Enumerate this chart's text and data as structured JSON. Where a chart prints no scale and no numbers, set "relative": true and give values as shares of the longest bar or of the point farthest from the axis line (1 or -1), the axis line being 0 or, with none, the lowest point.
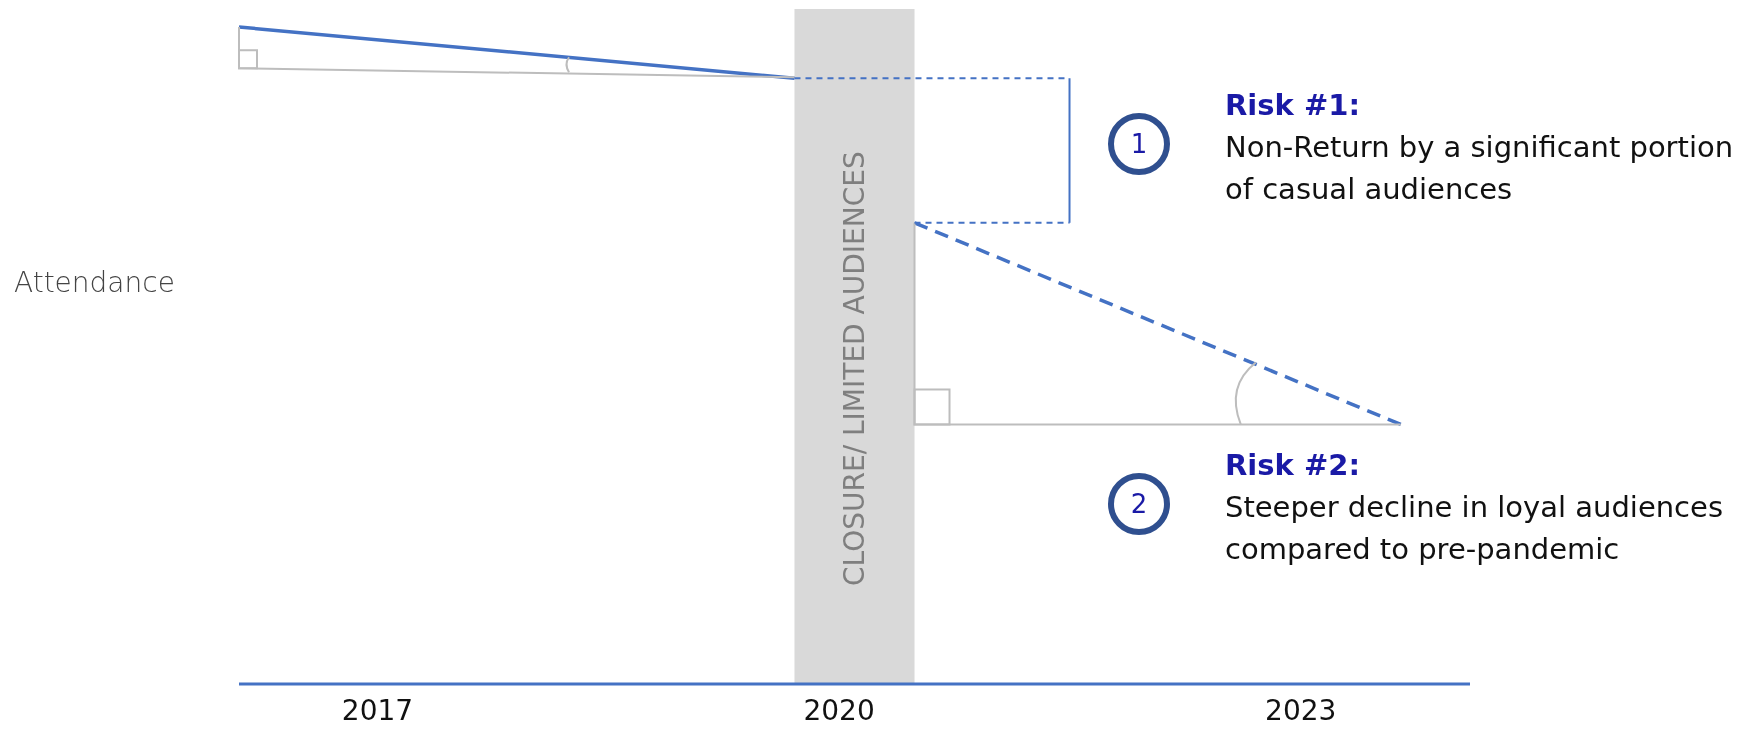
{
  "chart_data": {
    "type": "line",
    "relative": true,
    "ylabel": "Attendance",
    "xlim": [
      2016.1,
      2024.1
    ],
    "xticks": [
      2017,
      2020,
      2023
    ],
    "grid": false,
    "legend": false,
    "marker": "none",
    "series": [
      {
        "color": "#4472c4",
        "line_style": "solid",
        "x": [
          2016.1,
          2019.71
        ],
        "values": [
          1,
          0.922
        ]
      },
      {
        "color": "#4472c4",
        "line_style": "dashed",
        "x": [
          2020.49,
          2023.65
        ],
        "values": [
          0.702,
          0.395
        ]
      }
    ],
    "bands": [
      {
        "axis": "x",
        "from": 2019.71,
        "to": 2020.49,
        "label": "CLOSURE/ LIMITED AUDIENCES",
        "color": "#d9d9d9"
      }
    ],
    "annotations": [
      "1",
      "Risk #1:",
      "Non-Return by a significant portion of casual audiences",
      "2",
      "Risk #2:",
      "Steeper decline in loyal audiences compared to pre-pandemic"
    ]
  }
}
